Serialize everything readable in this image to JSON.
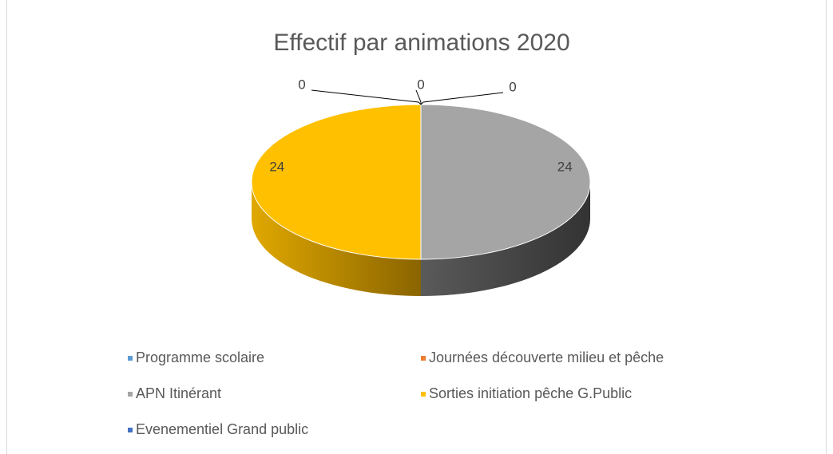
{
  "chart_data": {
    "type": "pie",
    "title": "Effectif par animations 2020",
    "categories": [
      "Programme scolaire",
      "Journées découverte milieu et pêche",
      "APN Itinérant",
      "Sorties initiation pêche G.Public",
      "Evenementiel Grand public"
    ],
    "values": [
      0,
      0,
      24,
      24,
      0
    ],
    "colors": [
      "#5b9bd5",
      "#ed7d31",
      "#a5a5a5",
      "#ffc000",
      "#4472c4"
    ]
  }
}
